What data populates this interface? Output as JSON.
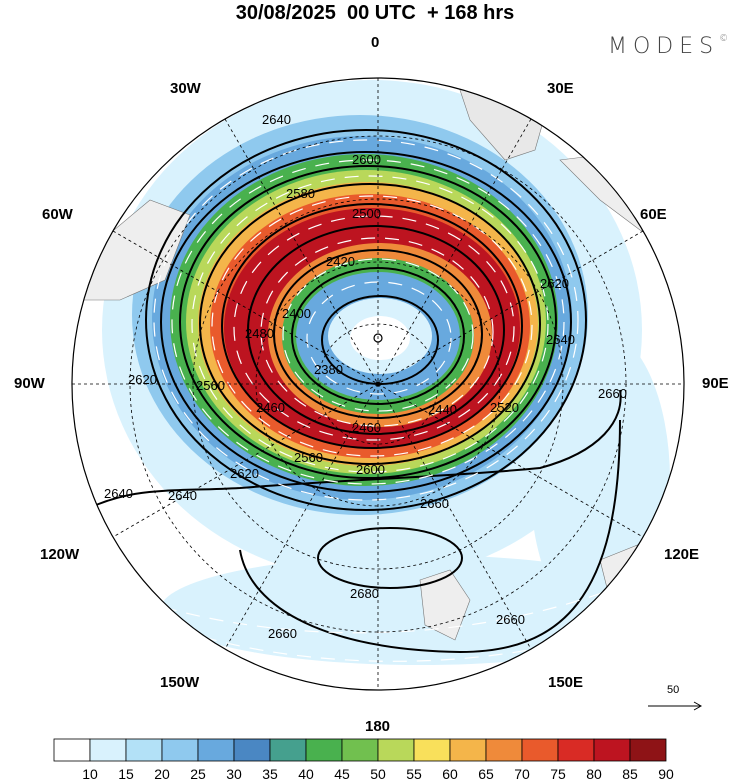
{
  "title": "30/08/2025  00 UTC  + 168 hrs",
  "brand": "MODES",
  "brand_mark": "©",
  "longitude_labels": {
    "lon_0": "0",
    "lon_30e": "30E",
    "lon_60e": "60E",
    "lon_90e": "90E",
    "lon_120e": "120E",
    "lon_150e": "150E",
    "lon_180": "180",
    "lon_150w": "150W",
    "lon_120w": "120W",
    "lon_90w": "90W",
    "lon_60w": "60W",
    "lon_30w": "30W"
  },
  "contour_labels": [
    "2640",
    "2600",
    "2580",
    "2560",
    "2420",
    "2400",
    "2380",
    "2500",
    "2480",
    "2520",
    "2440",
    "2460",
    "2620",
    "2660",
    "2680"
  ],
  "reference_vector": "50",
  "colorbar": {
    "ticks": [
      "10",
      "15",
      "20",
      "25",
      "30",
      "35",
      "40",
      "45",
      "50",
      "55",
      "60",
      "65",
      "70",
      "75",
      "80",
      "85",
      "90"
    ],
    "colors": [
      "#ffffff",
      "#d9f2fd",
      "#b3e1f7",
      "#8fc9ee",
      "#68a9de",
      "#4a87c3",
      "#45a08e",
      "#49b14e",
      "#71c04f",
      "#b9d85a",
      "#f9e05b",
      "#f4b54a",
      "#ef8a3a",
      "#e95a2c",
      "#d92b25",
      "#bd1420",
      "#8e1316"
    ]
  }
}
